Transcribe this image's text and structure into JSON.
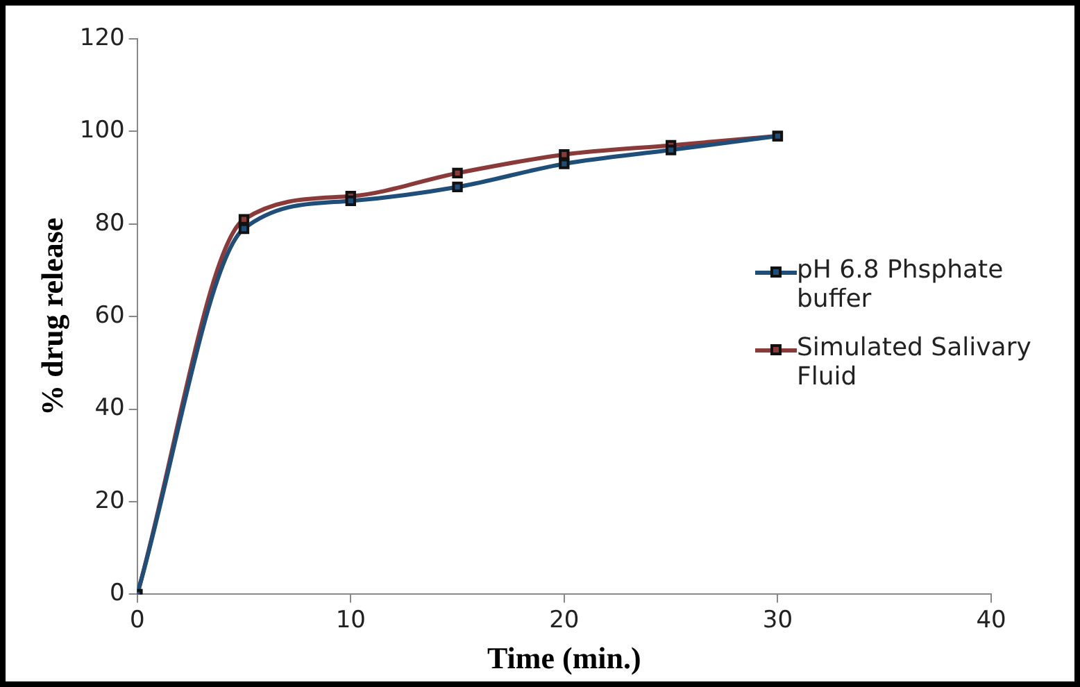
{
  "chart_data": {
    "type": "line",
    "xlabel": "Time (min.)",
    "ylabel": "% drug release",
    "x": [
      0,
      5,
      10,
      15,
      20,
      25,
      30
    ],
    "series": [
      {
        "name": "pH 6.8 Phsphate buffer",
        "color": "#1f4e79",
        "values": [
          0,
          79,
          85,
          88,
          93,
          96,
          99
        ]
      },
      {
        "name": "Simulated Salivary Fluid",
        "color": "#8b3a3a",
        "values": [
          0,
          81,
          86,
          91,
          95,
          97,
          99
        ]
      }
    ],
    "xlim": [
      0,
      40
    ],
    "xticks": [
      0,
      10,
      20,
      30,
      40
    ],
    "ylim": [
      0,
      120
    ],
    "yticks": [
      0,
      20,
      40,
      60,
      80,
      100,
      120
    ],
    "grid": false,
    "legend": "right",
    "marker": "square",
    "line_style": "solid"
  }
}
